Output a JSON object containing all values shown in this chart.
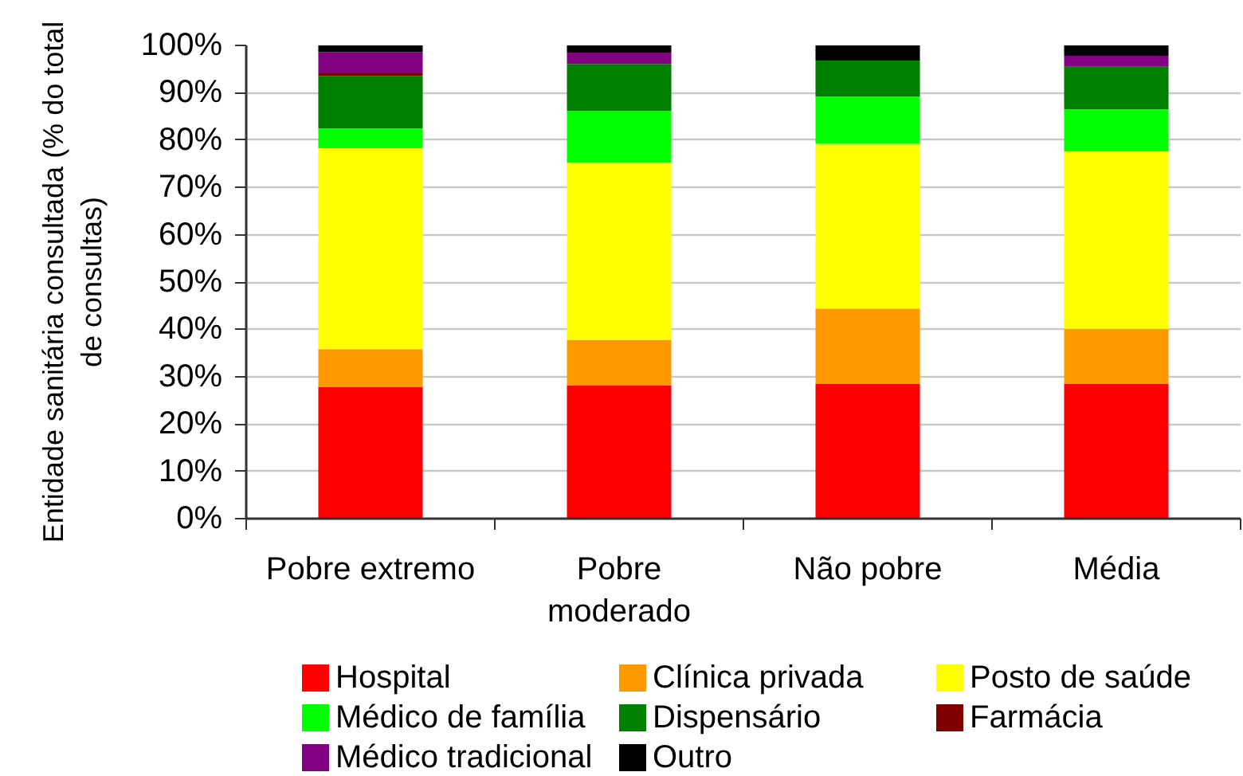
{
  "chart_data": {
    "type": "bar",
    "stacked": true,
    "ylabel": "Entidade sanitária consultada (% do total de consultas)",
    "categories": [
      "Pobre extremo",
      "Pobre moderado",
      "Não pobre",
      "Média"
    ],
    "series": [
      {
        "name": "Hospital",
        "color": "#ff0000",
        "values": [
          27.8,
          28.2,
          28.5,
          28.5
        ]
      },
      {
        "name": "Clínica privada",
        "color": "#ff9900",
        "values": [
          8.0,
          9.6,
          15.9,
          11.6
        ]
      },
      {
        "name": "Posto de saúde",
        "color": "#ffff00",
        "values": [
          42.5,
          37.4,
          34.8,
          37.5
        ]
      },
      {
        "name": "Médico de família",
        "color": "#00ff00",
        "values": [
          4.2,
          11.0,
          10.0,
          8.9
        ]
      },
      {
        "name": "Dispensário",
        "color": "#008000",
        "values": [
          11.0,
          9.9,
          7.6,
          9.0
        ]
      },
      {
        "name": "Farmácia",
        "color": "#800000",
        "values": [
          0.6,
          null,
          null,
          null
        ]
      },
      {
        "name": "Médico tradicional",
        "color": "#800080",
        "values": [
          4.5,
          2.4,
          null,
          2.3
        ]
      },
      {
        "name": "Outro",
        "color": "#000000",
        "values": [
          1.4,
          1.5,
          3.2,
          2.2
        ]
      }
    ],
    "ylim": [
      0,
      100
    ],
    "yticks": [
      {
        "value": 0,
        "label": "0%"
      },
      {
        "value": 10,
        "label": "10%"
      },
      {
        "value": 20,
        "label": "20%"
      },
      {
        "value": 30,
        "label": "30%"
      },
      {
        "value": 40,
        "label": "40%"
      },
      {
        "value": 50,
        "label": "50%"
      },
      {
        "value": 60,
        "label": "60%"
      },
      {
        "value": 70,
        "label": "70%"
      },
      {
        "value": 80,
        "label": "80%"
      },
      {
        "value": 90,
        "label": "90%"
      },
      {
        "value": 100,
        "label": "100%"
      }
    ],
    "grid": "y",
    "legend": "bottom"
  }
}
